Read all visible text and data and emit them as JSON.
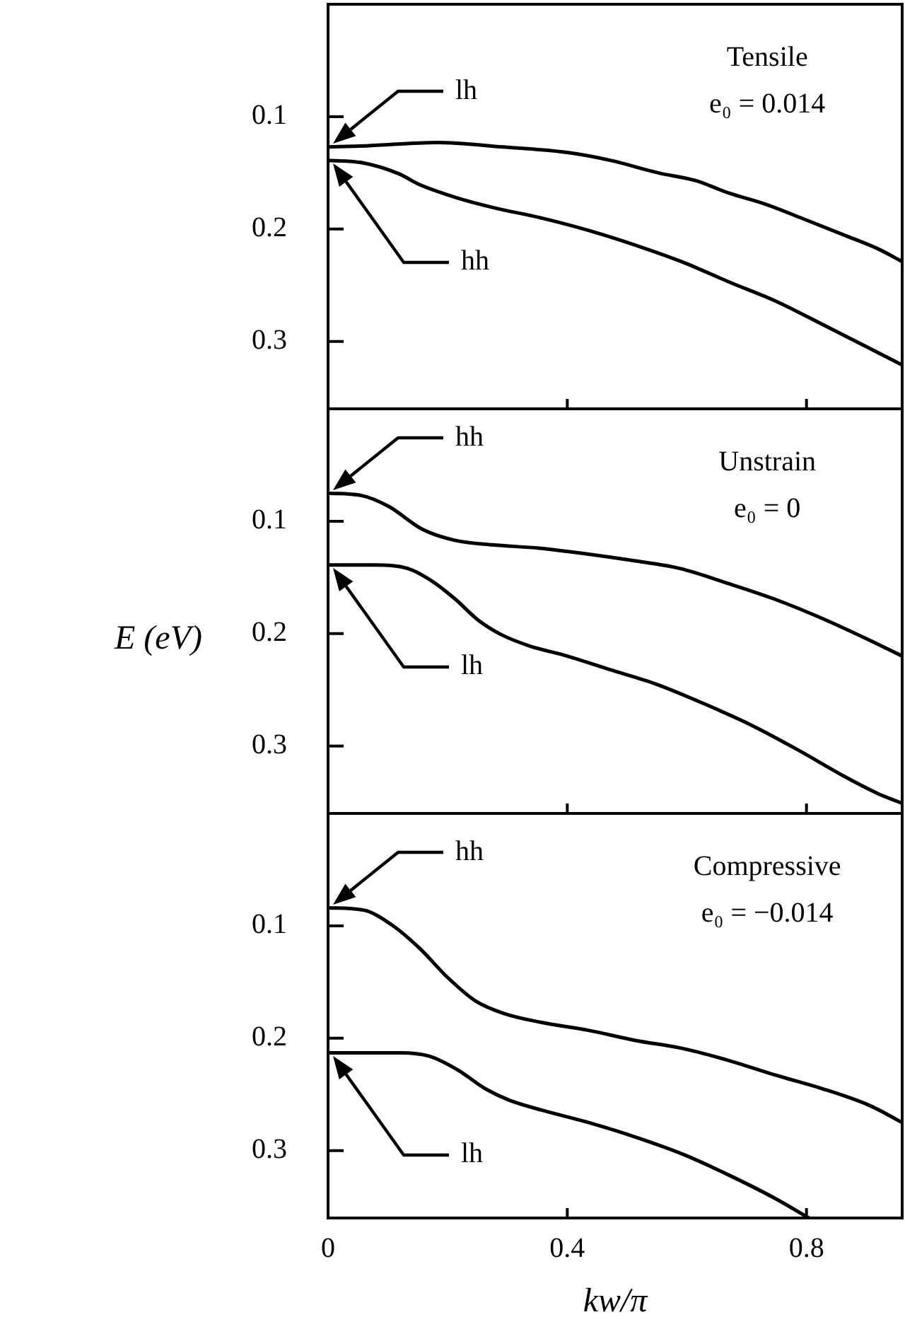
{
  "chart_data": [
    {
      "type": "line",
      "title": "Tensile",
      "subtitle": "e₀ = 0.014",
      "xlim": [
        0,
        0.96
      ],
      "xticks": [
        0,
        0.4,
        0.8
      ],
      "ylim": [
        0.36,
        0
      ],
      "yticks": [
        0.1,
        0.2,
        0.3
      ],
      "tick_labels": "y",
      "series": [
        {
          "name": "lh",
          "color": "#000000",
          "x": [
            0,
            0.064,
            0.182,
            0.292,
            0.402,
            0.473,
            0.552,
            0.615,
            0.67,
            0.732,
            0.795,
            0.866,
            0.921,
            0.96
          ],
          "values": [
            0.127,
            0.126,
            0.123,
            0.127,
            0.132,
            0.139,
            0.15,
            0.157,
            0.168,
            0.178,
            0.191,
            0.206,
            0.218,
            0.229
          ]
        },
        {
          "name": "hh",
          "color": "#000000",
          "x": [
            0,
            0.057,
            0.119,
            0.151,
            0.214,
            0.277,
            0.355,
            0.434,
            0.512,
            0.591,
            0.67,
            0.748,
            0.827,
            0.905,
            0.96
          ],
          "values": [
            0.139,
            0.141,
            0.151,
            0.16,
            0.172,
            0.181,
            0.19,
            0.201,
            0.214,
            0.229,
            0.247,
            0.264,
            0.285,
            0.306,
            0.321
          ]
        }
      ]
    },
    {
      "type": "line",
      "title": "Unstrain",
      "subtitle": "e₀ = 0",
      "ylabel": "E (eV)",
      "xlim": [
        0,
        0.96
      ],
      "xticks": [
        0,
        0.4,
        0.8
      ],
      "ylim": [
        0.36,
        0
      ],
      "yticks": [
        0.1,
        0.2,
        0.3
      ],
      "tick_labels": "y",
      "series": [
        {
          "name": "hh",
          "color": "#000000",
          "x": [
            0,
            0.055,
            0.102,
            0.157,
            0.212,
            0.275,
            0.353,
            0.431,
            0.51,
            0.588,
            0.667,
            0.745,
            0.824,
            0.902,
            0.96
          ],
          "values": [
            0.075,
            0.077,
            0.087,
            0.107,
            0.117,
            0.121,
            0.124,
            0.129,
            0.135,
            0.142,
            0.155,
            0.169,
            0.186,
            0.205,
            0.22
          ]
        },
        {
          "name": "lh",
          "color": "#000000",
          "x": [
            0,
            0.078,
            0.133,
            0.173,
            0.212,
            0.251,
            0.29,
            0.337,
            0.4,
            0.471,
            0.549,
            0.627,
            0.706,
            0.784,
            0.863,
            0.918,
            0.96
          ],
          "values": [
            0.139,
            0.139,
            0.142,
            0.153,
            0.169,
            0.188,
            0.201,
            0.211,
            0.22,
            0.232,
            0.245,
            0.262,
            0.281,
            0.303,
            0.327,
            0.342,
            0.351
          ]
        }
      ]
    },
    {
      "type": "line",
      "title": "Compressive",
      "subtitle": "e₀ = −0.014",
      "xlabel": "kw/π",
      "xlim": [
        0,
        0.96
      ],
      "xticks": [
        0,
        0.4,
        0.8
      ],
      "ylim": [
        0.36,
        0
      ],
      "yticks": [
        0.1,
        0.2,
        0.3
      ],
      "series": [
        {
          "name": "hh",
          "color": "#000000",
          "x": [
            0,
            0.059,
            0.106,
            0.153,
            0.2,
            0.247,
            0.294,
            0.357,
            0.435,
            0.514,
            0.592,
            0.671,
            0.749,
            0.827,
            0.906,
            0.96
          ],
          "values": [
            0.084,
            0.086,
            0.099,
            0.12,
            0.146,
            0.167,
            0.178,
            0.186,
            0.193,
            0.202,
            0.209,
            0.22,
            0.233,
            0.245,
            0.26,
            0.275
          ]
        },
        {
          "name": "lh",
          "color": "#000000",
          "x": [
            0,
            0.122,
            0.169,
            0.216,
            0.263,
            0.302,
            0.357,
            0.435,
            0.514,
            0.592,
            0.671,
            0.749,
            0.804
          ],
          "values": [
            0.213,
            0.213,
            0.216,
            0.228,
            0.245,
            0.255,
            0.264,
            0.275,
            0.288,
            0.303,
            0.322,
            0.343,
            0.36
          ]
        }
      ]
    }
  ]
}
